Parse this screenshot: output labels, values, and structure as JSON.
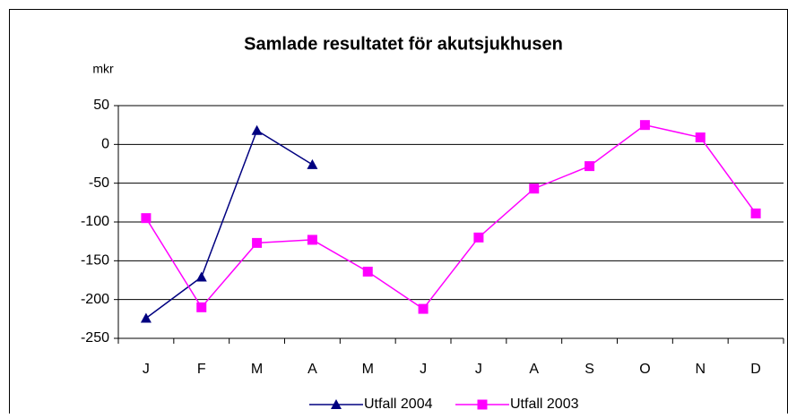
{
  "chart_data": {
    "type": "line",
    "title": "Samlade resultatet för akutsjukhusen",
    "y_label": "mkr",
    "categories": [
      "J",
      "F",
      "M",
      "A",
      "M",
      "J",
      "J",
      "A",
      "S",
      "O",
      "N",
      "D"
    ],
    "series": [
      {
        "name": "Utfall 2004",
        "color": "#000080",
        "marker": "triangle",
        "values": [
          -224,
          -171,
          18,
          -26,
          null,
          null,
          null,
          null,
          null,
          null,
          null,
          null
        ]
      },
      {
        "name": "Utfall 2003",
        "color": "#ff00ff",
        "marker": "square",
        "values": [
          -95,
          -210,
          -127,
          -123,
          -164,
          -212,
          -120,
          -57,
          -28,
          25,
          9,
          -89
        ]
      }
    ],
    "ylim": [
      -250,
      50
    ],
    "yticks": [
      -250,
      -200,
      -150,
      -100,
      -50,
      0,
      50
    ],
    "grid": true
  }
}
